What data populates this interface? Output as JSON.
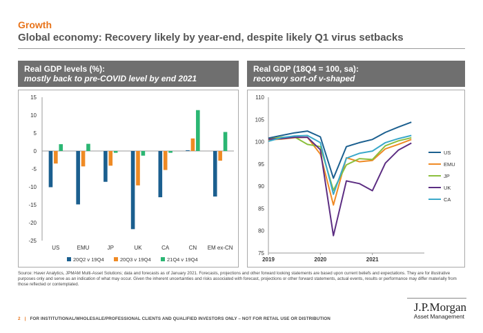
{
  "header": {
    "section": "Growth",
    "title": "Global economy: Recovery likely by year-end, despite likely Q1 virus setbacks"
  },
  "left_panel": {
    "title_line1": "Real GDP levels (%):",
    "title_line2": "mostly back to pre-COVID level by end 2021"
  },
  "right_panel": {
    "title_line1": "Real GDP (18Q4 = 100, sa):",
    "title_line2": "recovery sort-of v-shaped"
  },
  "chart_data": [
    {
      "type": "bar",
      "categories": [
        "US",
        "EMU",
        "JP",
        "UK",
        "CA",
        "CN",
        "EM ex-CN"
      ],
      "ylim": [
        -25,
        15
      ],
      "yticks": [
        15,
        10,
        5,
        0,
        -5,
        -10,
        -15,
        -20,
        -25
      ],
      "grid": false,
      "legend_position": "bottom",
      "series": [
        {
          "name": "20Q2 v 19Q4",
          "color": "#1b5f8f",
          "values": [
            -10.1,
            -14.9,
            -8.6,
            -21.8,
            -12.9,
            0.2,
            -12.7
          ]
        },
        {
          "name": "20Q3 v 19Q4",
          "color": "#ef8a24",
          "values": [
            -3.5,
            -4.3,
            -4.1,
            -9.6,
            -5.3,
            3.5,
            -2.7
          ]
        },
        {
          "name": "21Q4 v 19Q4",
          "color": "#2bb673",
          "values": [
            1.9,
            2.0,
            -0.5,
            -1.3,
            -0.5,
            11.4,
            5.3
          ]
        }
      ]
    },
    {
      "type": "line",
      "ylim": [
        75,
        110
      ],
      "yticks": [
        110,
        105,
        100,
        95,
        90,
        85,
        80,
        75
      ],
      "x_range": [
        2019.0,
        2022.0
      ],
      "x_ticks": [
        "2019",
        "2020",
        "2021"
      ],
      "grid": false,
      "legend_position": "right",
      "x": [
        2019.0,
        2019.25,
        2019.5,
        2019.75,
        2020.0,
        2020.25,
        2020.5,
        2020.75,
        2021.0,
        2021.25,
        2021.5,
        2021.75
      ],
      "series": [
        {
          "name": "US",
          "color": "#1b5f8f",
          "values": [
            100.8,
            101.4,
            102.0,
            102.4,
            101.1,
            91.8,
            98.9,
            99.8,
            100.5,
            102.1,
            103.3,
            104.4
          ]
        },
        {
          "name": "EMU",
          "color": "#ef8a24",
          "values": [
            100.4,
            100.6,
            100.9,
            101.0,
            97.2,
            85.8,
            96.4,
            95.5,
            95.8,
            98.4,
            99.4,
            100.5
          ]
        },
        {
          "name": "JP",
          "color": "#8bbf3c",
          "values": [
            100.6,
            101.0,
            101.1,
            99.4,
            98.9,
            89.1,
            94.8,
            96.2,
            96.0,
            99.1,
            100.2,
            100.9
          ]
        },
        {
          "name": "UK",
          "color": "#5c2d82",
          "values": [
            100.6,
            100.7,
            101.0,
            101.0,
            98.2,
            78.9,
            91.2,
            90.6,
            89.0,
            95.2,
            98.1,
            99.7
          ]
        },
        {
          "name": "CA",
          "color": "#3aa8c9",
          "values": [
            100.1,
            100.9,
            101.3,
            101.4,
            99.8,
            88.2,
            96.3,
            97.4,
            97.9,
            99.8,
            100.7,
            101.4
          ]
        }
      ]
    }
  ],
  "source": "Source: Haver Analytics, JPMAM Multi-Asset Solutions; data and forecasts as of January 2021. Forecasts, projections and other forward looking statements are based upon current beliefs and expectations. They are for illustrative purposes only and serve as an indication of what may occur. Given the inherent uncertainties and risks associated with forecast, projections or other forward statements, actual events, results or performance may differ materially from those reflected or contemplated.",
  "footer": {
    "page": "2",
    "separator": "|",
    "disclaimer": "FOR INSTITUTIONAL/WHOLESALE/PROFESSIONAL CLIENTS AND QUALIFIED INVESTORS ONLY – NOT FOR RETAIL USE OR DISTRIBUTION"
  },
  "logo": {
    "line1": "J.P.Morgan",
    "line2": "Asset Management"
  }
}
